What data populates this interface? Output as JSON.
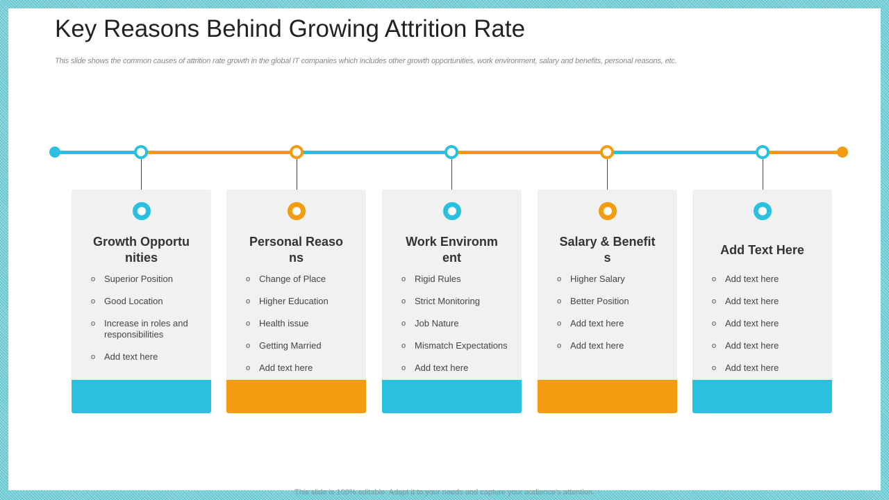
{
  "title": "Key Reasons Behind Growing Attrition Rate",
  "subtitle": "This slide shows the common causes of attrition rate growth in the global IT companies which includes other growth opportunities, work environment, salary and benefits, personal reasons, etc.",
  "footer": "This slide is 100% editable. Adapt it to your needs and capture your audience's attention.",
  "colors": {
    "blue": "#29c1df",
    "orange": "#f39c12"
  },
  "cards": [
    {
      "title": "Growth Opportunities",
      "items": [
        "Superior Position",
        "Good Location",
        "Increase in roles and responsibilities",
        "Add text here"
      ]
    },
    {
      "title": "Personal Reasons",
      "items": [
        "Change of Place",
        "Higher Education",
        "Health issue",
        "Getting Married",
        "Add text here"
      ]
    },
    {
      "title": "Work Environment",
      "items": [
        "Rigid Rules",
        "Strict Monitoring",
        "Job Nature",
        "Mismatch Expectations",
        "Add text here"
      ]
    },
    {
      "title": "Salary & Benefits",
      "items": [
        "Higher Salary",
        "Better Position",
        "Add text here",
        "Add text here"
      ]
    },
    {
      "title": "Add Text Here",
      "items": [
        "Add text here",
        "Add text here",
        "Add text here",
        "Add text here",
        "Add text here"
      ]
    }
  ]
}
